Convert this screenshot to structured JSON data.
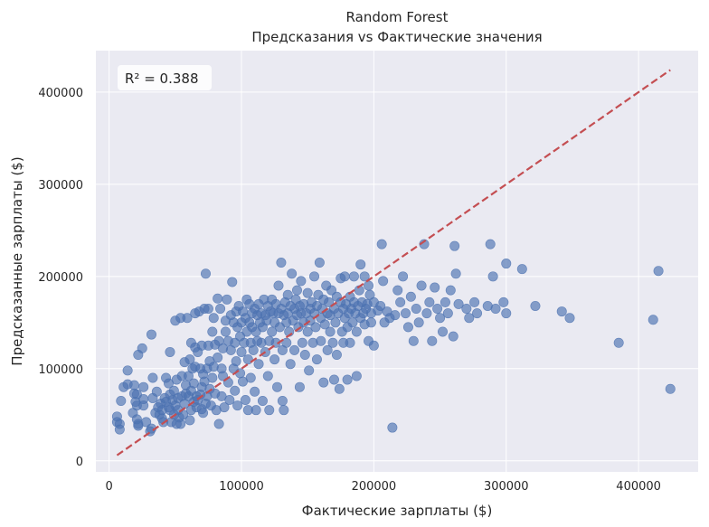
{
  "chart_data": {
    "type": "scatter",
    "title": "Random Forest",
    "subtitle": "Предсказания vs Фактические значения",
    "xlabel": "Фактические зарплаты ($)",
    "ylabel": "Предсказанные зарплаты ($)",
    "xlim": [
      -10000,
      445000
    ],
    "ylim": [
      -12000,
      445000
    ],
    "x_ticks": [
      0,
      100000,
      200000,
      300000,
      400000
    ],
    "y_ticks": [
      0,
      100000,
      200000,
      300000,
      400000
    ],
    "x_tick_labels": [
      "0",
      "100000",
      "200000",
      "300000",
      "400000"
    ],
    "y_tick_labels": [
      "0",
      "100000",
      "200000",
      "300000",
      "400000"
    ],
    "grid": true,
    "annotation": "R² = 0.388",
    "point_color": "#4c72b0",
    "reference_line": {
      "x": [
        6000,
        424000
      ],
      "y": [
        6000,
        424000
      ],
      "color": "#c44e52",
      "style": "dashed"
    },
    "background_color": "#eaeaf2",
    "points": [
      [
        6000,
        48000
      ],
      [
        6000,
        42000
      ],
      [
        8000,
        40000
      ],
      [
        8000,
        34000
      ],
      [
        9000,
        65000
      ],
      [
        11000,
        80000
      ],
      [
        14000,
        83000
      ],
      [
        14000,
        98000
      ],
      [
        18000,
        52000
      ],
      [
        19000,
        82000
      ],
      [
        19000,
        73000
      ],
      [
        20000,
        64000
      ],
      [
        21000,
        72000
      ],
      [
        21000,
        45000
      ],
      [
        21000,
        60000
      ],
      [
        22000,
        38000
      ],
      [
        22000,
        40000
      ],
      [
        22000,
        115000
      ],
      [
        25000,
        122000
      ],
      [
        26000,
        60000
      ],
      [
        26000,
        80000
      ],
      [
        26000,
        67000
      ],
      [
        28000,
        42000
      ],
      [
        31000,
        32000
      ],
      [
        32000,
        35000
      ],
      [
        32000,
        137000
      ],
      [
        33000,
        90000
      ],
      [
        33000,
        68000
      ],
      [
        35000,
        52000
      ],
      [
        36000,
        75000
      ],
      [
        37000,
        58000
      ],
      [
        38000,
        50000
      ],
      [
        39000,
        62000
      ],
      [
        40000,
        55000
      ],
      [
        40000,
        46000
      ],
      [
        41000,
        42000
      ],
      [
        42000,
        68000
      ],
      [
        43000,
        64000
      ],
      [
        43000,
        90000
      ],
      [
        45000,
        58000
      ],
      [
        45000,
        84000
      ],
      [
        46000,
        55000
      ],
      [
        46000,
        72000
      ],
      [
        46000,
        118000
      ],
      [
        47000,
        42000
      ],
      [
        48000,
        66000
      ],
      [
        49000,
        50000
      ],
      [
        49000,
        76000
      ],
      [
        50000,
        152000
      ],
      [
        50000,
        60000
      ],
      [
        51000,
        88000
      ],
      [
        51000,
        40000
      ],
      [
        52000,
        55000
      ],
      [
        52000,
        68000
      ],
      [
        53000,
        47000
      ],
      [
        54000,
        40000
      ],
      [
        54000,
        155000
      ],
      [
        55000,
        70000
      ],
      [
        55000,
        92000
      ],
      [
        56000,
        50000
      ],
      [
        57000,
        62000
      ],
      [
        57000,
        107000
      ],
      [
        58000,
        82000
      ],
      [
        58000,
        73000
      ],
      [
        59000,
        155000
      ],
      [
        60000,
        70000
      ],
      [
        60000,
        92000
      ],
      [
        61000,
        44000
      ],
      [
        61000,
        110000
      ],
      [
        62000,
        55000
      ],
      [
        62000,
        76000
      ],
      [
        62000,
        128000
      ],
      [
        63000,
        100000
      ],
      [
        64000,
        64000
      ],
      [
        64000,
        84000
      ],
      [
        65000,
        102000
      ],
      [
        65000,
        160000
      ],
      [
        65000,
        123000
      ],
      [
        66000,
        58000
      ],
      [
        66000,
        70000
      ],
      [
        67000,
        66000
      ],
      [
        67000,
        118000
      ],
      [
        68000,
        162000
      ],
      [
        69000,
        72000
      ],
      [
        69000,
        100000
      ],
      [
        70000,
        80000
      ],
      [
        70000,
        125000
      ],
      [
        70000,
        56000
      ],
      [
        71000,
        52000
      ],
      [
        71000,
        94000
      ],
      [
        72000,
        165000
      ],
      [
        72000,
        86000
      ],
      [
        73000,
        203000
      ],
      [
        73000,
        62000
      ],
      [
        74000,
        70000
      ],
      [
        74000,
        100000
      ],
      [
        75000,
        125000
      ],
      [
        75000,
        165000
      ],
      [
        76000,
        78000
      ],
      [
        76000,
        108000
      ],
      [
        77000,
        60000
      ],
      [
        78000,
        90000
      ],
      [
        78000,
        140000
      ],
      [
        79000,
        102000
      ],
      [
        79000,
        155000
      ],
      [
        80000,
        126000
      ],
      [
        80000,
        73000
      ],
      [
        81000,
        55000
      ],
      [
        82000,
        112000
      ],
      [
        82000,
        176000
      ],
      [
        83000,
        40000
      ],
      [
        83000,
        130000
      ],
      [
        84000,
        165000
      ],
      [
        85000,
        70000
      ],
      [
        85000,
        100000
      ],
      [
        86000,
        92000
      ],
      [
        86000,
        122000
      ],
      [
        87000,
        58000
      ],
      [
        88000,
        152000
      ],
      [
        88000,
        140000
      ],
      [
        89000,
        175000
      ],
      [
        90000,
        130000
      ],
      [
        90000,
        85000
      ],
      [
        91000,
        66000
      ],
      [
        92000,
        120000
      ],
      [
        92000,
        158000
      ],
      [
        93000,
        194000
      ],
      [
        94000,
        100000
      ],
      [
        94000,
        150000
      ],
      [
        95000,
        76000
      ],
      [
        95000,
        128000
      ],
      [
        96000,
        162000
      ],
      [
        96000,
        108000
      ],
      [
        97000,
        60000
      ],
      [
        97000,
        145000
      ],
      [
        98000,
        168000
      ],
      [
        99000,
        95000
      ],
      [
        99000,
        135000
      ],
      [
        100000,
        150000
      ],
      [
        100000,
        118000
      ],
      [
        101000,
        86000
      ],
      [
        101000,
        162000
      ],
      [
        102000,
        128000
      ],
      [
        103000,
        155000
      ],
      [
        103000,
        66000
      ],
      [
        104000,
        175000
      ],
      [
        104000,
        140000
      ],
      [
        105000,
        55000
      ],
      [
        105000,
        110000
      ],
      [
        106000,
        150000
      ],
      [
        106000,
        170000
      ],
      [
        107000,
        128000
      ],
      [
        107000,
        90000
      ],
      [
        108000,
        160000
      ],
      [
        108000,
        145000
      ],
      [
        109000,
        120000
      ],
      [
        110000,
        165000
      ],
      [
        110000,
        75000
      ],
      [
        111000,
        140000
      ],
      [
        111000,
        55000
      ],
      [
        112000,
        158000
      ],
      [
        112000,
        130000
      ],
      [
        113000,
        170000
      ],
      [
        113000,
        105000
      ],
      [
        114000,
        150000
      ],
      [
        115000,
        128000
      ],
      [
        115000,
        160000
      ],
      [
        116000,
        65000
      ],
      [
        116000,
        145000
      ],
      [
        117000,
        175000
      ],
      [
        118000,
        118000
      ],
      [
        118000,
        158000
      ],
      [
        119000,
        152000
      ],
      [
        120000,
        168000
      ],
      [
        120000,
        92000
      ],
      [
        121000,
        130000
      ],
      [
        121000,
        55000
      ],
      [
        122000,
        162000
      ],
      [
        123000,
        140000
      ],
      [
        123000,
        175000
      ],
      [
        124000,
        160000
      ],
      [
        125000,
        150000
      ],
      [
        125000,
        110000
      ],
      [
        126000,
        170000
      ],
      [
        126000,
        128000
      ],
      [
        127000,
        80000
      ],
      [
        128000,
        160000
      ],
      [
        128000,
        190000
      ],
      [
        129000,
        145000
      ],
      [
        130000,
        165000
      ],
      [
        130000,
        215000
      ],
      [
        131000,
        120000
      ],
      [
        131000,
        65000
      ],
      [
        132000,
        158000
      ],
      [
        132000,
        55000
      ],
      [
        133000,
        172000
      ],
      [
        134000,
        150000
      ],
      [
        134000,
        128000
      ],
      [
        135000,
        160000
      ],
      [
        135000,
        180000
      ],
      [
        136000,
        140000
      ],
      [
        137000,
        168000
      ],
      [
        137000,
        105000
      ],
      [
        138000,
        203000
      ],
      [
        139000,
        152000
      ],
      [
        140000,
        165000
      ],
      [
        140000,
        120000
      ],
      [
        141000,
        175000
      ],
      [
        142000,
        158000
      ],
      [
        142000,
        185000
      ],
      [
        143000,
        145000
      ],
      [
        144000,
        168000
      ],
      [
        144000,
        80000
      ],
      [
        145000,
        160000
      ],
      [
        145000,
        195000
      ],
      [
        146000,
        128000
      ],
      [
        147000,
        170000
      ],
      [
        147000,
        150000
      ],
      [
        148000,
        115000
      ],
      [
        149000,
        160000
      ],
      [
        150000,
        182000
      ],
      [
        150000,
        140000
      ],
      [
        151000,
        98000
      ],
      [
        152000,
        165000
      ],
      [
        152000,
        152000
      ],
      [
        153000,
        172000
      ],
      [
        154000,
        128000
      ],
      [
        155000,
        160000
      ],
      [
        155000,
        200000
      ],
      [
        156000,
        145000
      ],
      [
        157000,
        168000
      ],
      [
        157000,
        110000
      ],
      [
        158000,
        180000
      ],
      [
        159000,
        215000
      ],
      [
        160000,
        155000
      ],
      [
        160000,
        130000
      ],
      [
        161000,
        165000
      ],
      [
        162000,
        175000
      ],
      [
        162000,
        85000
      ],
      [
        163000,
        148000
      ],
      [
        164000,
        190000
      ],
      [
        165000,
        160000
      ],
      [
        165000,
        120000
      ],
      [
        166000,
        172000
      ],
      [
        167000,
        140000
      ],
      [
        167000,
        158000
      ],
      [
        168000,
        185000
      ],
      [
        169000,
        128000
      ],
      [
        170000,
        165000
      ],
      [
        170000,
        88000
      ],
      [
        171000,
        150000
      ],
      [
        172000,
        178000
      ],
      [
        172000,
        115000
      ],
      [
        173000,
        160000
      ],
      [
        174000,
        78000
      ],
      [
        175000,
        172000
      ],
      [
        175000,
        198000
      ],
      [
        176000,
        140000
      ],
      [
        177000,
        165000
      ],
      [
        177000,
        128000
      ],
      [
        178000,
        155000
      ],
      [
        178000,
        200000
      ],
      [
        179000,
        170000
      ],
      [
        180000,
        88000
      ],
      [
        180000,
        145000
      ],
      [
        181000,
        160000
      ],
      [
        182000,
        178000
      ],
      [
        182000,
        128000
      ],
      [
        183000,
        165000
      ],
      [
        184000,
        150000
      ],
      [
        185000,
        200000
      ],
      [
        185000,
        172000
      ],
      [
        186000,
        160000
      ],
      [
        187000,
        140000
      ],
      [
        187000,
        92000
      ],
      [
        188000,
        168000
      ],
      [
        189000,
        185000
      ],
      [
        190000,
        155000
      ],
      [
        190000,
        213000
      ],
      [
        191000,
        172000
      ],
      [
        192000,
        160000
      ],
      [
        193000,
        148000
      ],
      [
        193000,
        200000
      ],
      [
        194000,
        165000
      ],
      [
        195000,
        170000
      ],
      [
        196000,
        130000
      ],
      [
        196000,
        190000
      ],
      [
        197000,
        180000
      ],
      [
        198000,
        160000
      ],
      [
        198000,
        150000
      ],
      [
        200000,
        172000
      ],
      [
        200000,
        125000
      ],
      [
        203000,
        163000
      ],
      [
        205000,
        168000
      ],
      [
        206000,
        235000
      ],
      [
        207000,
        195000
      ],
      [
        208000,
        150000
      ],
      [
        210000,
        162000
      ],
      [
        212000,
        155000
      ],
      [
        214000,
        36000
      ],
      [
        216000,
        158000
      ],
      [
        218000,
        185000
      ],
      [
        220000,
        172000
      ],
      [
        222000,
        200000
      ],
      [
        224000,
        160000
      ],
      [
        226000,
        145000
      ],
      [
        228000,
        178000
      ],
      [
        230000,
        130000
      ],
      [
        232000,
        165000
      ],
      [
        234000,
        150000
      ],
      [
        236000,
        190000
      ],
      [
        238000,
        235000
      ],
      [
        240000,
        160000
      ],
      [
        242000,
        172000
      ],
      [
        244000,
        130000
      ],
      [
        246000,
        188000
      ],
      [
        248000,
        165000
      ],
      [
        250000,
        155000
      ],
      [
        252000,
        140000
      ],
      [
        254000,
        172000
      ],
      [
        256000,
        160000
      ],
      [
        258000,
        185000
      ],
      [
        260000,
        135000
      ],
      [
        261000,
        233000
      ],
      [
        262000,
        203000
      ],
      [
        264000,
        170000
      ],
      [
        270000,
        165000
      ],
      [
        272000,
        155000
      ],
      [
        276000,
        172000
      ],
      [
        278000,
        160000
      ],
      [
        286000,
        168000
      ],
      [
        288000,
        235000
      ],
      [
        290000,
        200000
      ],
      [
        292000,
        165000
      ],
      [
        298000,
        172000
      ],
      [
        300000,
        214000
      ],
      [
        300000,
        160000
      ],
      [
        312000,
        208000
      ],
      [
        322000,
        168000
      ],
      [
        342000,
        162000
      ],
      [
        348000,
        155000
      ],
      [
        385000,
        128000
      ],
      [
        411000,
        153000
      ],
      [
        415000,
        206000
      ],
      [
        424000,
        78000
      ]
    ]
  }
}
